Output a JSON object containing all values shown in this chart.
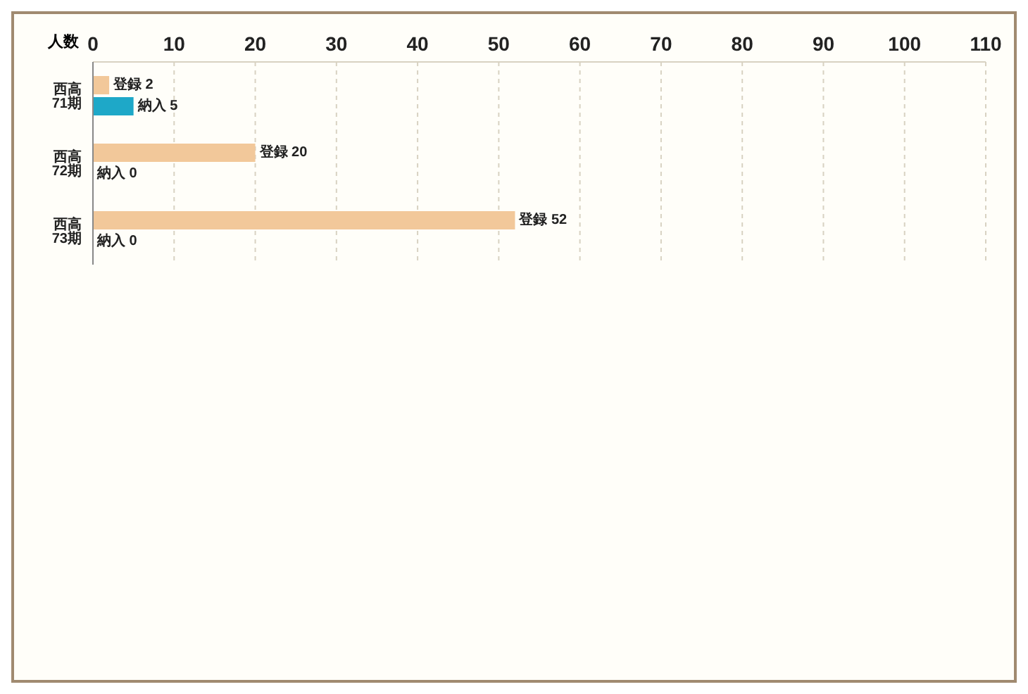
{
  "chart_data": {
    "type": "bar",
    "orientation": "horizontal",
    "xlabel": "人数",
    "categories": [
      "西高 71期",
      "西高 72期",
      "西高 73期"
    ],
    "series": [
      {
        "name": "登録",
        "color": "#f2c89a",
        "values": [
          2,
          20,
          52
        ],
        "value_labels": [
          "2",
          "20",
          "52"
        ]
      },
      {
        "name": "納入",
        "color": "#1ea8c8",
        "values": [
          5,
          0,
          0
        ],
        "value_labels": [
          "5",
          "0",
          "0"
        ]
      }
    ],
    "xlim": [
      0,
      110
    ],
    "xticks": [
      0,
      10,
      20,
      30,
      40,
      50,
      60,
      70,
      80,
      90,
      100,
      110
    ],
    "grid": "x",
    "legend": false
  }
}
